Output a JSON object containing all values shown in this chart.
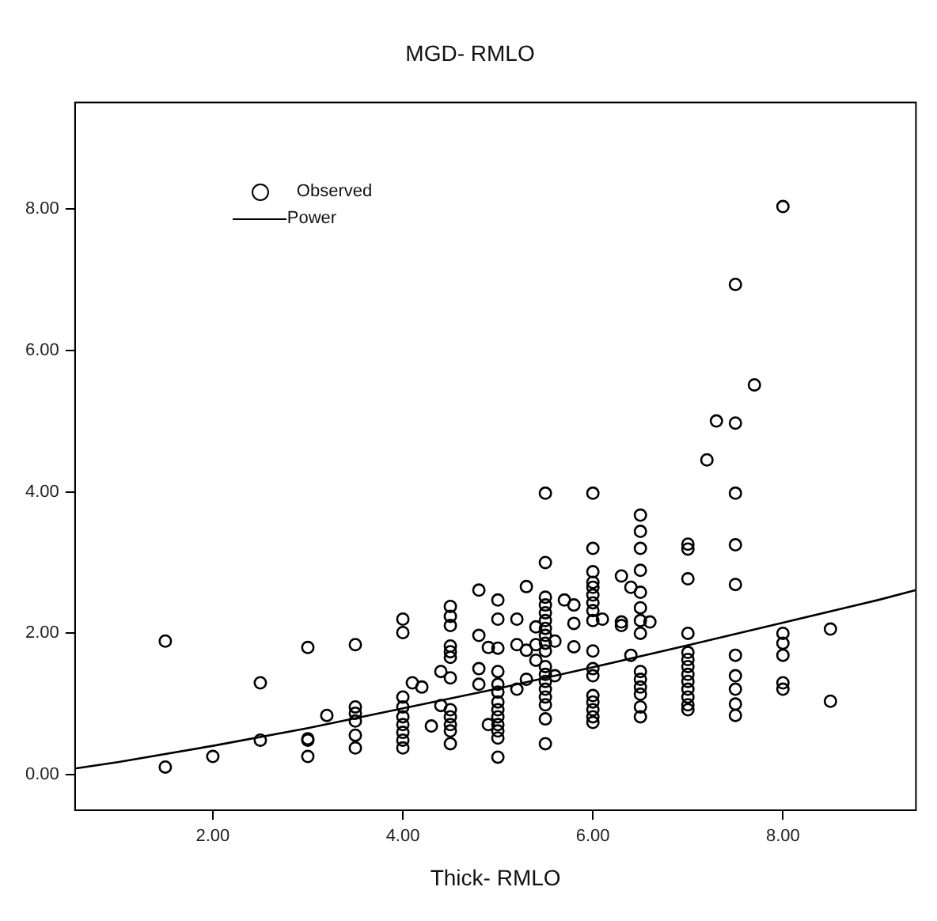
{
  "chart_data": {
    "type": "scatter",
    "title": "MGD- RMLO",
    "xlabel": "Thick- RMLO",
    "xlim": [
      0.55,
      9.4
    ],
    "ylim": [
      -0.5,
      9.5
    ],
    "xticks": [
      {
        "value": 2,
        "label": "2.00"
      },
      {
        "value": 4,
        "label": "4.00"
      },
      {
        "value": 6,
        "label": "6.00"
      },
      {
        "value": 8,
        "label": "8.00"
      }
    ],
    "yticks": [
      {
        "value": 0,
        "label": "0.00"
      },
      {
        "value": 2,
        "label": "2.00"
      },
      {
        "value": 4,
        "label": "4.00"
      },
      {
        "value": 6,
        "label": "6.00"
      },
      {
        "value": 8,
        "label": "8.00"
      }
    ],
    "grid": false,
    "legend": "top left",
    "series": [
      {
        "name": "Observed",
        "type": "scatter",
        "marker": "circle",
        "color": "#000000",
        "x": [
          1.5,
          1.5,
          2.0,
          2.5,
          2.5,
          3.0,
          3.0,
          3.0,
          3.0,
          3.2,
          3.5,
          3.5,
          3.5,
          3.5,
          3.5,
          3.5,
          4.0,
          4.0,
          4.0,
          4.0,
          4.0,
          4.0,
          4.0,
          4.0,
          4.0,
          4.1,
          4.2,
          4.3,
          4.4,
          4.4,
          4.5,
          4.5,
          4.5,
          4.5,
          4.5,
          4.5,
          4.5,
          4.5,
          4.5,
          4.5,
          4.5,
          4.5,
          4.8,
          4.8,
          4.8,
          4.8,
          4.9,
          4.9,
          5.0,
          5.0,
          5.0,
          5.0,
          5.0,
          5.0,
          5.0,
          5.0,
          5.0,
          5.0,
          5.0,
          5.0,
          5.0,
          5.2,
          5.2,
          5.2,
          5.3,
          5.3,
          5.3,
          5.4,
          5.4,
          5.4,
          5.5,
          5.5,
          5.5,
          5.5,
          5.5,
          5.5,
          5.5,
          5.5,
          5.5,
          5.5,
          5.5,
          5.5,
          5.5,
          5.5,
          5.5,
          5.5,
          5.5,
          5.5,
          5.6,
          5.6,
          5.7,
          5.8,
          5.8,
          5.8,
          6.0,
          6.0,
          6.0,
          6.0,
          6.0,
          6.0,
          6.0,
          6.0,
          6.0,
          6.0,
          6.0,
          6.0,
          6.0,
          6.0,
          6.0,
          6.0,
          6.0,
          6.1,
          6.3,
          6.3,
          6.3,
          6.4,
          6.4,
          6.5,
          6.5,
          6.5,
          6.5,
          6.5,
          6.5,
          6.5,
          6.5,
          6.5,
          6.5,
          6.5,
          6.5,
          6.5,
          6.5,
          6.6,
          7.0,
          7.0,
          7.0,
          7.0,
          7.0,
          7.0,
          7.0,
          7.0,
          7.0,
          7.0,
          7.0,
          7.0,
          7.0,
          7.2,
          7.3,
          7.5,
          7.5,
          7.5,
          7.5,
          7.5,
          7.5,
          7.5,
          7.5,
          7.5,
          7.5,
          7.7,
          8.0,
          8.0,
          8.0,
          8.0,
          8.0,
          8.0,
          8.5,
          8.5
        ],
        "values": [
          1.89,
          0.11,
          0.26,
          1.3,
          0.49,
          1.8,
          0.51,
          0.49,
          0.26,
          0.84,
          1.84,
          0.96,
          0.87,
          0.76,
          0.56,
          0.38,
          2.2,
          2.01,
          1.1,
          0.96,
          0.82,
          0.71,
          0.6,
          0.49,
          0.38,
          1.3,
          1.24,
          0.69,
          1.46,
          0.98,
          2.38,
          2.24,
          2.11,
          1.82,
          1.74,
          1.66,
          1.37,
          0.92,
          0.82,
          0.71,
          0.62,
          0.44,
          2.61,
          1.97,
          1.5,
          1.28,
          1.8,
          0.71,
          2.47,
          2.2,
          1.79,
          1.46,
          1.28,
          1.17,
          1.03,
          0.92,
          0.82,
          0.71,
          0.62,
          0.52,
          0.25,
          2.2,
          1.84,
          1.21,
          2.66,
          1.76,
          1.35,
          2.09,
          1.84,
          1.62,
          3.98,
          3.0,
          2.51,
          2.4,
          2.29,
          2.18,
          2.07,
          1.97,
          1.86,
          1.75,
          1.53,
          1.42,
          1.32,
          1.21,
          1.1,
          0.99,
          0.79,
          0.44,
          1.89,
          1.4,
          2.47,
          2.4,
          2.14,
          1.81,
          3.98,
          3.2,
          2.87,
          2.72,
          2.65,
          2.54,
          2.43,
          2.32,
          2.18,
          1.75,
          1.5,
          1.4,
          1.12,
          1.03,
          0.92,
          0.82,
          0.74,
          2.2,
          2.81,
          2.16,
          2.11,
          2.65,
          1.69,
          3.67,
          3.44,
          3.2,
          2.89,
          2.58,
          2.36,
          2.18,
          2.0,
          1.46,
          1.35,
          1.24,
          1.14,
          0.96,
          0.82,
          2.16,
          3.26,
          3.19,
          2.77,
          2.0,
          1.73,
          1.63,
          1.53,
          1.42,
          1.32,
          1.21,
          1.1,
          0.99,
          0.92,
          4.45,
          5.0,
          6.93,
          4.97,
          3.98,
          3.25,
          2.69,
          1.69,
          1.4,
          1.21,
          1.0,
          0.84,
          5.51,
          8.03,
          2.0,
          1.86,
          1.69,
          1.3,
          1.21,
          2.06,
          1.04
        ]
      },
      {
        "name": "Power",
        "type": "line",
        "marker": "none",
        "line_style": "solid",
        "color": "#000000",
        "x": [
          0.55,
          1,
          2,
          3,
          4,
          5,
          6,
          7,
          8,
          9,
          9.4
        ],
        "values": [
          0.09,
          0.18,
          0.41,
          0.66,
          0.94,
          1.22,
          1.52,
          1.83,
          2.15,
          2.47,
          2.61
        ]
      }
    ]
  }
}
